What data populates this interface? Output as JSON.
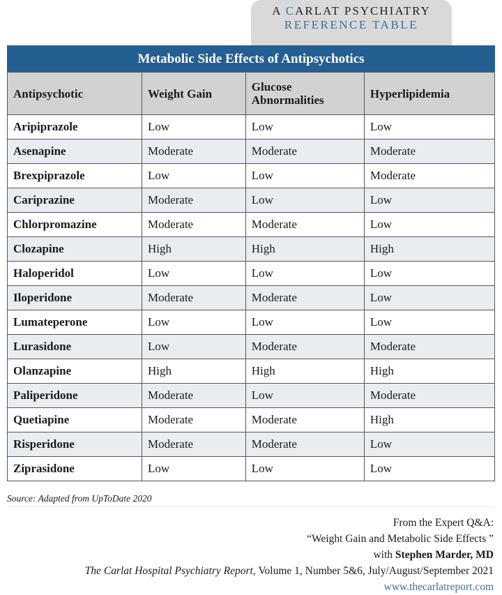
{
  "banner": {
    "line1_prefix": "A ",
    "line1_accent": "C",
    "line1_rest": "ARLAT PSYCHIATRY",
    "line2": "REFERENCE TABLE"
  },
  "title": "Metabolic Side Effects of Antipsychotics",
  "columns": [
    "Antipsychotic",
    "Weight Gain",
    "Glucose Abnormalities",
    "Hyperlipidemia"
  ],
  "rows": [
    [
      "Aripiprazole",
      "Low",
      "Low",
      "Low"
    ],
    [
      "Asenapine",
      "Moderate",
      "Moderate",
      "Moderate"
    ],
    [
      "Brexpiprazole",
      "Low",
      "Low",
      "Moderate"
    ],
    [
      "Cariprazine",
      "Moderate",
      "Low",
      "Low"
    ],
    [
      "Chlorpromazine",
      "Moderate",
      "Moderate",
      "Low"
    ],
    [
      "Clozapine",
      "High",
      "High",
      "High"
    ],
    [
      "Haloperidol",
      "Low",
      "Low",
      "Low"
    ],
    [
      "Iloperidone",
      "Moderate",
      "Moderate",
      "Low"
    ],
    [
      "Lumateperone",
      "Low",
      "Low",
      "Low"
    ],
    [
      "Lurasidone",
      "Low",
      "Moderate",
      "Moderate"
    ],
    [
      "Olanzapine",
      "High",
      "High",
      "High"
    ],
    [
      "Paliperidone",
      "Moderate",
      "Low",
      "Moderate"
    ],
    [
      "Quetiapine",
      "Moderate",
      "Moderate",
      "High"
    ],
    [
      "Risperidone",
      "Moderate",
      "Moderate",
      "Low"
    ],
    [
      "Ziprasidone",
      "Low",
      "Low",
      "Low"
    ]
  ],
  "source": "Source: Adapted from UpToDate 2020",
  "footer": {
    "line1": "From the Expert Q&A:",
    "line2": "“Weight Gain and Metabolic Side Effects ”",
    "line3_prefix": "with ",
    "line3_name": "Stephen Marder, MD",
    "journal": "The Carlat Hospital Psychiatry Report",
    "issue": ", Volume 1, Number 5&6, July/August/September 2021",
    "url": "www.thecarlatreport.com"
  },
  "colors": {
    "title_bar": "#245f92",
    "accent": "#3a6f9a",
    "header_bg": "#d2d2d2",
    "alt_row": "#e9edf2"
  }
}
